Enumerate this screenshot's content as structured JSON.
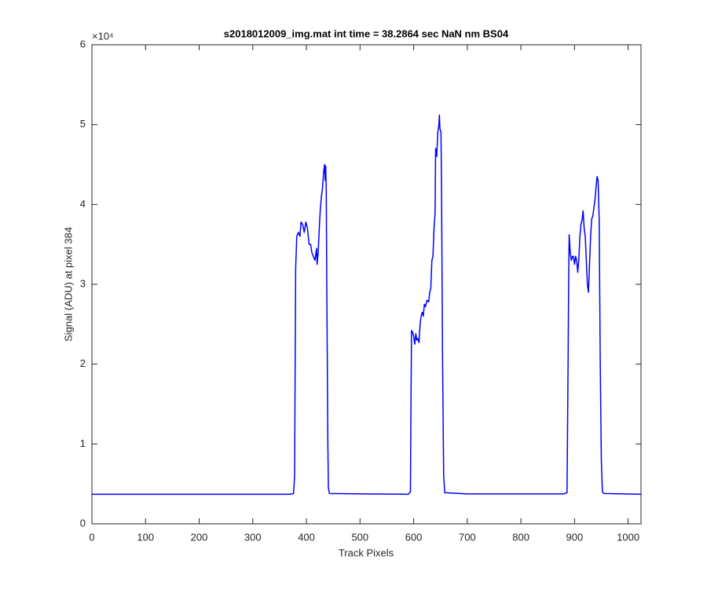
{
  "chart_data": {
    "type": "line",
    "title": "s2018012009_img.mat int time = 38.2864 sec  NaN nm BS04",
    "x_label": "Track Pixels",
    "y_label": "Signal (ADU) at pixel 384",
    "y_exponent_label": "×10⁴",
    "xlim": [
      0,
      1024
    ],
    "xticks": [
      0,
      100,
      200,
      300,
      400,
      500,
      600,
      700,
      800,
      900,
      1000
    ],
    "ylim": [
      0,
      6
    ],
    "yticks": [
      0,
      1,
      2,
      3,
      4,
      5,
      6
    ],
    "grid": false,
    "series": [
      {
        "color": "#0000ff",
        "x": [
          0,
          370,
          376,
          378,
          380,
          382,
          385,
          388,
          390,
          393,
          396,
          399,
          402,
          405,
          408,
          410,
          413,
          416,
          419,
          420,
          422,
          424,
          426,
          428,
          430,
          432,
          434,
          435,
          436,
          437,
          438,
          440,
          441,
          443,
          500,
          590,
          594,
          595,
          596,
          598,
          600,
          602,
          604,
          606,
          608,
          610,
          612,
          614,
          616,
          618,
          620,
          622,
          625,
          628,
          630,
          632,
          634,
          636,
          638,
          640,
          641,
          643,
          645,
          647,
          648,
          649,
          651,
          652,
          654,
          656,
          658,
          700,
          880,
          886,
          888,
          889,
          890,
          892,
          894,
          896,
          898,
          900,
          902,
          904,
          906,
          908,
          910,
          912,
          914,
          916,
          918,
          920,
          922,
          924,
          926,
          928,
          930,
          932,
          934,
          936,
          938,
          940,
          942,
          944,
          946,
          948,
          950,
          952,
          955,
          1024
        ],
        "values": [
          0.37,
          0.37,
          0.38,
          0.6,
          3.2,
          3.6,
          3.65,
          3.6,
          3.78,
          3.75,
          3.65,
          3.78,
          3.7,
          3.5,
          3.5,
          3.4,
          3.35,
          3.3,
          3.45,
          3.25,
          3.4,
          3.7,
          3.95,
          4.1,
          4.2,
          4.4,
          4.5,
          4.3,
          4.48,
          4.2,
          3.0,
          1.0,
          0.45,
          0.38,
          0.375,
          0.37,
          0.4,
          1.5,
          2.42,
          2.4,
          2.35,
          2.25,
          2.38,
          2.3,
          2.32,
          2.27,
          2.5,
          2.6,
          2.65,
          2.6,
          2.75,
          2.72,
          2.8,
          2.78,
          2.9,
          2.95,
          3.3,
          3.35,
          3.7,
          3.9,
          4.7,
          4.6,
          4.9,
          5.0,
          5.12,
          4.95,
          4.9,
          4.2,
          2.0,
          0.6,
          0.39,
          0.375,
          0.375,
          0.39,
          2.0,
          3.0,
          3.62,
          3.4,
          3.3,
          3.35,
          3.35,
          3.25,
          3.35,
          3.3,
          3.15,
          3.3,
          3.6,
          3.75,
          3.8,
          3.92,
          3.7,
          3.6,
          3.3,
          3.0,
          2.9,
          3.25,
          3.6,
          3.82,
          3.85,
          3.95,
          4.05,
          4.2,
          4.35,
          4.3,
          3.8,
          2.0,
          0.8,
          0.4,
          0.38,
          0.37
        ]
      }
    ]
  }
}
